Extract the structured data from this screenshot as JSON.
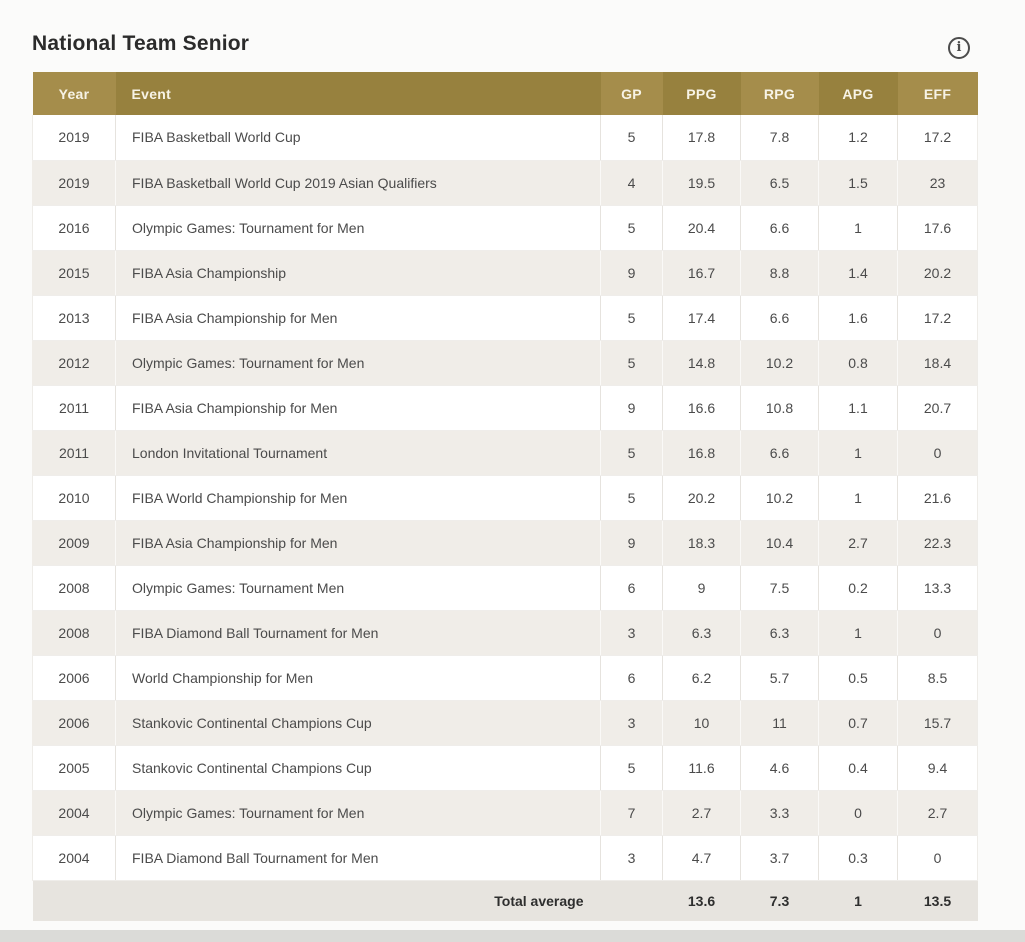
{
  "page": {
    "title": "National Team Senior",
    "info_icon_glyph": "i"
  },
  "table": {
    "columns": [
      {
        "key": "year",
        "label": "Year"
      },
      {
        "key": "event",
        "label": "Event"
      },
      {
        "key": "gp",
        "label": "GP"
      },
      {
        "key": "ppg",
        "label": "PPG"
      },
      {
        "key": "rpg",
        "label": "RPG"
      },
      {
        "key": "apg",
        "label": "APG"
      },
      {
        "key": "eff",
        "label": "EFF"
      }
    ],
    "rows": [
      {
        "year": "2019",
        "event": "FIBA Basketball World Cup",
        "gp": "5",
        "ppg": "17.8",
        "rpg": "7.8",
        "apg": "1.2",
        "eff": "17.2"
      },
      {
        "year": "2019",
        "event": "FIBA Basketball World Cup 2019 Asian Qualifiers",
        "gp": "4",
        "ppg": "19.5",
        "rpg": "6.5",
        "apg": "1.5",
        "eff": "23"
      },
      {
        "year": "2016",
        "event": "Olympic Games: Tournament for Men",
        "gp": "5",
        "ppg": "20.4",
        "rpg": "6.6",
        "apg": "1",
        "eff": "17.6"
      },
      {
        "year": "2015",
        "event": "FIBA Asia Championship",
        "gp": "9",
        "ppg": "16.7",
        "rpg": "8.8",
        "apg": "1.4",
        "eff": "20.2"
      },
      {
        "year": "2013",
        "event": "FIBA Asia Championship for Men",
        "gp": "5",
        "ppg": "17.4",
        "rpg": "6.6",
        "apg": "1.6",
        "eff": "17.2"
      },
      {
        "year": "2012",
        "event": "Olympic Games: Tournament for Men",
        "gp": "5",
        "ppg": "14.8",
        "rpg": "10.2",
        "apg": "0.8",
        "eff": "18.4"
      },
      {
        "year": "2011",
        "event": "FIBA Asia Championship for Men",
        "gp": "9",
        "ppg": "16.6",
        "rpg": "10.8",
        "apg": "1.1",
        "eff": "20.7"
      },
      {
        "year": "2011",
        "event": "London Invitational Tournament",
        "gp": "5",
        "ppg": "16.8",
        "rpg": "6.6",
        "apg": "1",
        "eff": "0"
      },
      {
        "year": "2010",
        "event": "FIBA World Championship for Men",
        "gp": "5",
        "ppg": "20.2",
        "rpg": "10.2",
        "apg": "1",
        "eff": "21.6"
      },
      {
        "year": "2009",
        "event": "FIBA Asia Championship for Men",
        "gp": "9",
        "ppg": "18.3",
        "rpg": "10.4",
        "apg": "2.7",
        "eff": "22.3"
      },
      {
        "year": "2008",
        "event": "Olympic Games: Tournament Men",
        "gp": "6",
        "ppg": "9",
        "rpg": "7.5",
        "apg": "0.2",
        "eff": "13.3"
      },
      {
        "year": "2008",
        "event": "FIBA Diamond Ball Tournament for Men",
        "gp": "3",
        "ppg": "6.3",
        "rpg": "6.3",
        "apg": "1",
        "eff": "0"
      },
      {
        "year": "2006",
        "event": "World Championship for Men",
        "gp": "6",
        "ppg": "6.2",
        "rpg": "5.7",
        "apg": "0.5",
        "eff": "8.5"
      },
      {
        "year": "2006",
        "event": "Stankovic Continental Champions Cup",
        "gp": "3",
        "ppg": "10",
        "rpg": "11",
        "apg": "0.7",
        "eff": "15.7"
      },
      {
        "year": "2005",
        "event": "Stankovic Continental Champions Cup",
        "gp": "5",
        "ppg": "11.6",
        "rpg": "4.6",
        "apg": "0.4",
        "eff": "9.4"
      },
      {
        "year": "2004",
        "event": "Olympic Games: Tournament for Men",
        "gp": "7",
        "ppg": "2.7",
        "rpg": "3.3",
        "apg": "0",
        "eff": "2.7"
      },
      {
        "year": "2004",
        "event": "FIBA Diamond Ball Tournament for Men",
        "gp": "3",
        "ppg": "4.7",
        "rpg": "3.7",
        "apg": "0.3",
        "eff": "0"
      }
    ],
    "footer": {
      "label": "Total average",
      "gp": "",
      "ppg": "13.6",
      "rpg": "7.3",
      "apg": "1",
      "eff": "13.5"
    }
  },
  "colors": {
    "header_gold_light": "#a58d4b",
    "header_gold_dark": "#97813e",
    "row_white": "#ffffff",
    "row_beige": "#f0ede8",
    "footer_bg": "#e7e4df",
    "title_text": "#2b2b2b",
    "body_text": "#4b4b4b",
    "page_bg": "#fbfbfa",
    "bottom_edge": "#dbdbd8"
  }
}
